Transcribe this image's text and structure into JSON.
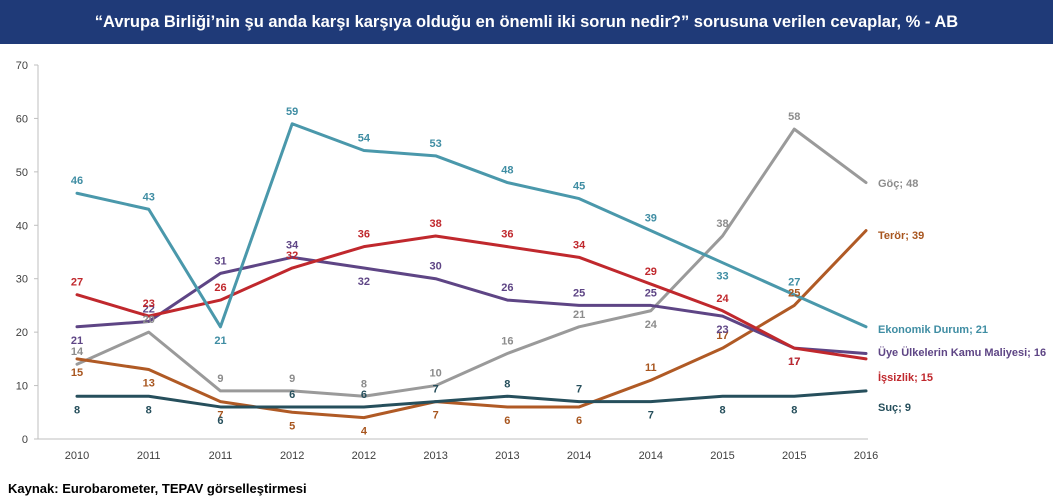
{
  "title": "“Avrupa Birliği’nin şu anda karşı karşıya olduğu en önemli iki sorun nedir?” sorusuna verilen cevaplar, % - AB",
  "source": "Kaynak:  Eurobarometer, TEPAV görselleştirmesi",
  "chart_data": {
    "type": "line",
    "categories": [
      "2010",
      "2011",
      "2011",
      "2012",
      "2012",
      "2013",
      "2013",
      "2014",
      "2014",
      "2015",
      "2015",
      "2016"
    ],
    "ylim": [
      0,
      70
    ],
    "yticks": [
      0,
      10,
      20,
      30,
      40,
      50,
      60,
      70
    ],
    "grid": false,
    "series": [
      {
        "name": "Ekonomik Durum",
        "end_label": "Ekonomik Durum; 21",
        "color": "#4a98ab",
        "values": [
          46,
          43,
          21,
          59,
          54,
          53,
          48,
          45,
          39,
          33,
          27,
          21
        ]
      },
      {
        "name": "Göç",
        "end_label": "Göç; 48",
        "color": "#9a9a9a",
        "values": [
          14,
          20,
          9,
          9,
          8,
          10,
          16,
          21,
          24,
          38,
          58,
          48
        ]
      },
      {
        "name": "Terör",
        "end_label": "Terör; 39",
        "color": "#b05a25",
        "values": [
          15,
          13,
          7,
          5,
          4,
          7,
          6,
          6,
          11,
          17,
          25,
          39
        ]
      },
      {
        "name": "Üye Ülkelerin Kamu Maliyesi",
        "end_label": "Üye Ülkelerin Kamu Maliyesi; 16",
        "color": "#5e4585",
        "values": [
          21,
          22,
          31,
          34,
          32,
          30,
          26,
          25,
          25,
          23,
          17,
          16
        ]
      },
      {
        "name": "İşsizlik",
        "end_label": "İşsizlik; 15",
        "color": "#c0282d",
        "values": [
          27,
          23,
          26,
          32,
          36,
          38,
          36,
          34,
          29,
          24,
          17,
          15
        ]
      },
      {
        "name": "Suç",
        "end_label": "Suç; 9",
        "color": "#264f5c",
        "values": [
          8,
          8,
          6,
          6,
          6,
          7,
          8,
          7,
          7,
          8,
          8,
          9
        ]
      }
    ]
  }
}
